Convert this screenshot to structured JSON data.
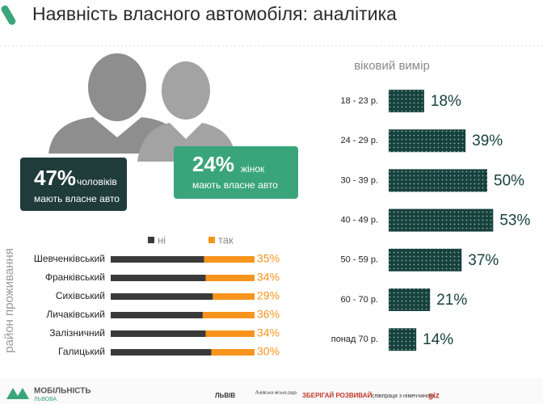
{
  "title": "Наявність власного автомобіля: аналітика",
  "callouts": [
    {
      "value": "47%",
      "who": "чоловіків",
      "text": "мають власне авто"
    },
    {
      "value": "24%",
      "who": "жінок",
      "text": "мають власне авто"
    }
  ],
  "chart_data": [
    {
      "type": "bar",
      "orientation": "horizontal",
      "title": "віковий вимір",
      "categories": [
        "18 - 23 р.",
        "24 - 29 р.",
        "30 - 39 р.",
        "40 - 49 р.",
        "50 - 59 р.",
        "60 - 70 р.",
        "понад 70 р."
      ],
      "values": [
        18,
        39,
        50,
        53,
        37,
        21,
        14
      ],
      "value_labels": [
        "18%",
        "39%",
        "50%",
        "53%",
        "37%",
        "21%",
        "14%"
      ],
      "color": "#17413d"
    },
    {
      "type": "stacked-bar",
      "orientation": "horizontal",
      "ylabel": "район проживання",
      "categories": [
        "Шевченківський",
        "Франківський",
        "Сихівський",
        "Личаківський",
        "Залізничний",
        "Галицький"
      ],
      "series": [
        {
          "name": "ні",
          "color": "#3a3a3a",
          "values": [
            65,
            66,
            71,
            64,
            66,
            70
          ]
        },
        {
          "name": "так",
          "color": "#f7941d",
          "values": [
            35,
            34,
            29,
            36,
            34,
            30
          ],
          "value_labels": [
            "35%",
            "34%",
            "29%",
            "36%",
            "34%",
            "30%"
          ]
        }
      ]
    }
  ],
  "footer": {
    "brand": "МОБІЛЬНІСТЬ",
    "brand_sub": "ЛЬВОВА",
    "partners": [
      "ЛЬВІВ",
      "Львівська міська рада",
      "ЗБЕРІГАЙ РОЗВИВАЙ",
      "співпраця з німеччиною",
      "giz"
    ]
  }
}
